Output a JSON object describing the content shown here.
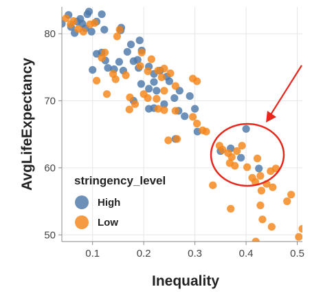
{
  "chart_data": {
    "type": "scatter",
    "xlabel": "Inequality",
    "ylabel": "AvgLifeExpectancy",
    "xlim": [
      0.04,
      0.51
    ],
    "ylim": [
      49,
      84
    ],
    "x_ticks": [
      0.1,
      0.2,
      0.3,
      0.4,
      0.5
    ],
    "y_ticks": [
      50,
      60,
      70,
      80
    ],
    "grid": true,
    "legend": {
      "title": "stringency_level",
      "placement": "bottom-left inside plot",
      "entries": [
        "High",
        "Low"
      ]
    },
    "colors": {
      "High": "#4c78a8",
      "Low": "#f58518",
      "grid": "#e6e6e6",
      "axis": "#888888",
      "annotation": "#e8261c"
    },
    "annotation": {
      "type": "ellipse with arrow",
      "highlights": "points near Inequality 0.36-0.44 and AvgLifeExpectancy 58-66"
    },
    "series": [
      {
        "name": "High",
        "points": [
          [
            0.04,
            81.5
          ],
          [
            0.053,
            82.8
          ],
          [
            0.058,
            81.0
          ],
          [
            0.065,
            80.1
          ],
          [
            0.07,
            81.8
          ],
          [
            0.076,
            82.2
          ],
          [
            0.08,
            81.5
          ],
          [
            0.086,
            80.8
          ],
          [
            0.09,
            82.9
          ],
          [
            0.093,
            83.3
          ],
          [
            0.098,
            80.3
          ],
          [
            0.108,
            81.8
          ],
          [
            0.118,
            82.9
          ],
          [
            0.123,
            80.6
          ],
          [
            0.155,
            80.5
          ],
          [
            0.156,
            80.9
          ],
          [
            0.175,
            78.4
          ],
          [
            0.192,
            79.0
          ],
          [
            0.196,
            77.5
          ],
          [
            0.1,
            74.6
          ],
          [
            0.108,
            77.0
          ],
          [
            0.118,
            77.2
          ],
          [
            0.125,
            76.0
          ],
          [
            0.13,
            74.9
          ],
          [
            0.142,
            74.7
          ],
          [
            0.152,
            75.8
          ],
          [
            0.16,
            74.5
          ],
          [
            0.168,
            77.3
          ],
          [
            0.18,
            75.9
          ],
          [
            0.188,
            76.1
          ],
          [
            0.19,
            74.9
          ],
          [
            0.21,
            75.1
          ],
          [
            0.22,
            74.0
          ],
          [
            0.232,
            74.5
          ],
          [
            0.245,
            73.6
          ],
          [
            0.22,
            72.8
          ],
          [
            0.25,
            72.9
          ],
          [
            0.195,
            72.5
          ],
          [
            0.21,
            71.8
          ],
          [
            0.225,
            71.5
          ],
          [
            0.18,
            70.0
          ],
          [
            0.21,
            68.8
          ],
          [
            0.22,
            68.9
          ],
          [
            0.24,
            69.5
          ],
          [
            0.268,
            68.5
          ],
          [
            0.27,
            71.5
          ],
          [
            0.26,
            70.4
          ],
          [
            0.29,
            70.7
          ],
          [
            0.28,
            67.7
          ],
          [
            0.3,
            68.8
          ],
          [
            0.305,
            65.4
          ],
          [
            0.35,
            62.5
          ],
          [
            0.37,
            62.9
          ],
          [
            0.39,
            61.5
          ],
          [
            0.4,
            65.8
          ],
          [
            0.425,
            59.9
          ],
          [
            0.262,
            64.3
          ]
        ]
      },
      {
        "name": "Low",
        "points": [
          [
            0.048,
            82.3
          ],
          [
            0.057,
            81.4
          ],
          [
            0.063,
            81.9
          ],
          [
            0.072,
            80.7
          ],
          [
            0.082,
            80.3
          ],
          [
            0.095,
            81.4
          ],
          [
            0.104,
            81.6
          ],
          [
            0.148,
            79.6
          ],
          [
            0.153,
            80.6
          ],
          [
            0.118,
            76.4
          ],
          [
            0.124,
            77.2
          ],
          [
            0.14,
            74.0
          ],
          [
            0.145,
            73.2
          ],
          [
            0.165,
            73.8
          ],
          [
            0.193,
            75.2
          ],
          [
            0.208,
            74.4
          ],
          [
            0.228,
            74.5
          ],
          [
            0.24,
            74.8
          ],
          [
            0.252,
            74.1
          ],
          [
            0.196,
            77.2
          ],
          [
            0.215,
            76.2
          ],
          [
            0.235,
            73.5
          ],
          [
            0.108,
            73.0
          ],
          [
            0.128,
            71.0
          ],
          [
            0.173,
            70.5
          ],
          [
            0.183,
            69.5
          ],
          [
            0.2,
            71.0
          ],
          [
            0.208,
            70.4
          ],
          [
            0.225,
            70.3
          ],
          [
            0.24,
            71.5
          ],
          [
            0.262,
            72.2
          ],
          [
            0.172,
            68.7
          ],
          [
            0.228,
            68.8
          ],
          [
            0.24,
            68.6
          ],
          [
            0.262,
            68.5
          ],
          [
            0.296,
            73.3
          ],
          [
            0.304,
            72.9
          ],
          [
            0.296,
            67.6
          ],
          [
            0.304,
            66.6
          ],
          [
            0.315,
            65.6
          ],
          [
            0.322,
            65.4
          ],
          [
            0.265,
            64.3
          ],
          [
            0.248,
            64.1
          ],
          [
            0.348,
            63.3
          ],
          [
            0.354,
            62.7
          ],
          [
            0.365,
            62.2
          ],
          [
            0.372,
            61.6
          ],
          [
            0.382,
            62.5
          ],
          [
            0.392,
            63.3
          ],
          [
            0.368,
            60.7
          ],
          [
            0.378,
            60.3
          ],
          [
            0.402,
            60.1
          ],
          [
            0.422,
            61.4
          ],
          [
            0.412,
            58.5
          ],
          [
            0.418,
            57.9
          ],
          [
            0.428,
            58.8
          ],
          [
            0.448,
            59.5
          ],
          [
            0.458,
            59.9
          ],
          [
            0.44,
            57.6
          ],
          [
            0.335,
            57.4
          ],
          [
            0.37,
            53.9
          ],
          [
            0.428,
            54.4
          ],
          [
            0.452,
            57.1
          ],
          [
            0.48,
            55.0
          ],
          [
            0.488,
            56.0
          ],
          [
            0.432,
            52.3
          ],
          [
            0.45,
            51.2
          ],
          [
            0.43,
            56.6
          ],
          [
            0.419,
            49.0
          ],
          [
            0.503,
            49.7
          ],
          [
            0.51,
            50.9
          ]
        ]
      }
    ]
  }
}
